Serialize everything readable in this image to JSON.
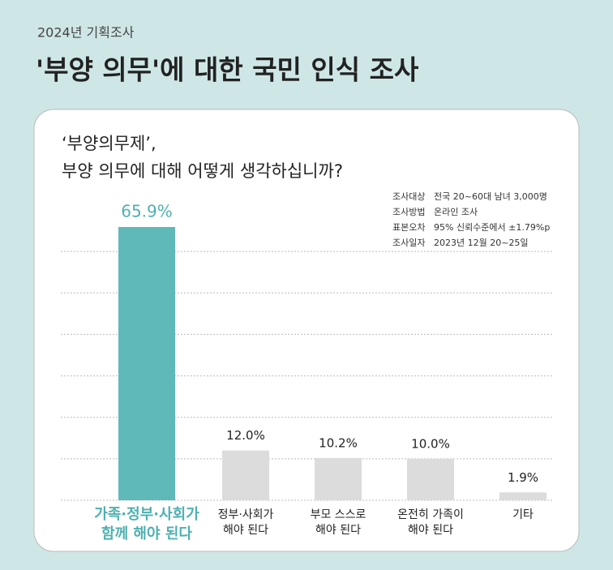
{
  "header": {
    "kicker": "2024년 기획조사",
    "title": "'부양 의무'에 대한 국민 인식 조사"
  },
  "chart_data": {
    "type": "bar",
    "title": [
      "‘부양의무제’,",
      "부양 의무에 대해 어떻게 생각하십니까?"
    ],
    "info": [
      {
        "label": "조사대상",
        "value": "전국 20~60대 남녀 3,000명"
      },
      {
        "label": "조사방법",
        "value": "온라인 조사"
      },
      {
        "label": "표본오차",
        "value": "95% 신뢰수준에서 ±1.79%p"
      },
      {
        "label": "조사일자",
        "value": "2023년 12월 20~25일"
      }
    ],
    "categories": [
      [
        "가족·정부·사회가",
        "함께 해야 된다"
      ],
      [
        "정부·사회가",
        "해야 된다"
      ],
      [
        "부모 스스로",
        "해야 된다"
      ],
      [
        "온전히 가족이",
        "해야 된다"
      ],
      [
        "기타"
      ]
    ],
    "values": [
      65.9,
      12.0,
      10.2,
      10.0,
      1.9
    ],
    "value_labels": [
      "65.9%",
      "12.0%",
      "10.2%",
      "10.0%",
      "1.9%"
    ],
    "colors": [
      "#5fb9b9",
      "#dcdcdc",
      "#dcdcdc",
      "#dcdcdc",
      "#dcdcdc"
    ],
    "ylim": [
      0,
      70
    ],
    "yticks": [
      0,
      10,
      20,
      30,
      40,
      50,
      60
    ],
    "grid": true
  }
}
